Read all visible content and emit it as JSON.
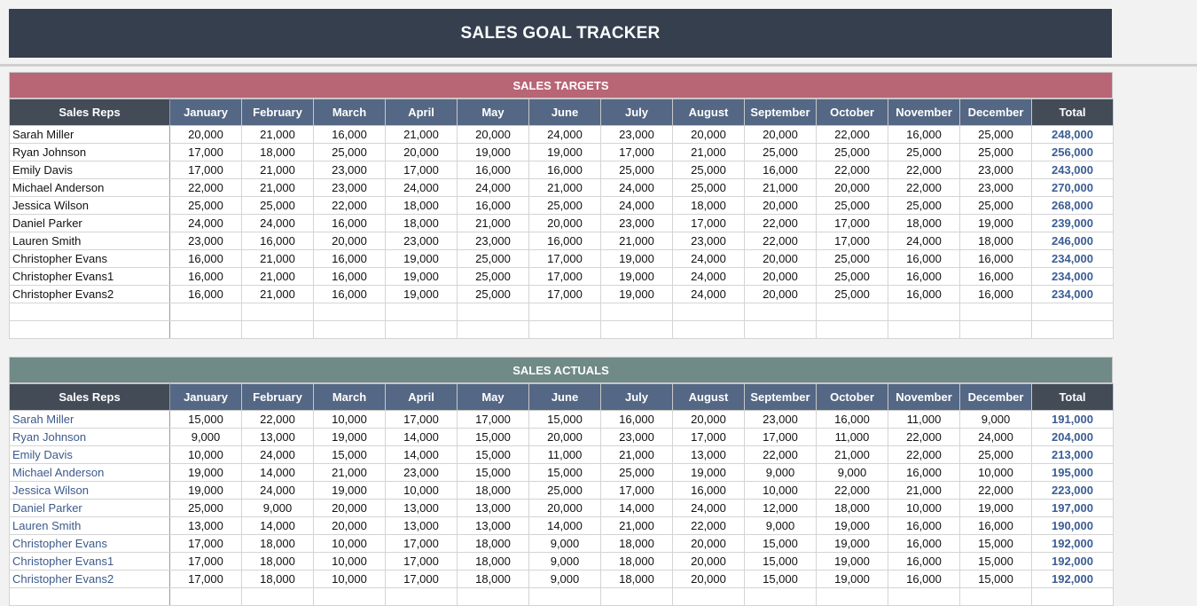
{
  "title": "SALES GOAL TRACKER",
  "columns": {
    "rep_header": "Sales Reps",
    "months": [
      "January",
      "February",
      "March",
      "April",
      "May",
      "June",
      "July",
      "August",
      "September",
      "October",
      "November",
      "December"
    ],
    "total_header": "Total"
  },
  "targets": {
    "header": "SALES TARGETS",
    "rows": [
      {
        "name": "Sarah Miller",
        "values": [
          "20,000",
          "21,000",
          "16,000",
          "21,000",
          "20,000",
          "24,000",
          "23,000",
          "20,000",
          "20,000",
          "22,000",
          "16,000",
          "25,000"
        ],
        "total": "248,000"
      },
      {
        "name": "Ryan Johnson",
        "values": [
          "17,000",
          "18,000",
          "25,000",
          "20,000",
          "19,000",
          "19,000",
          "17,000",
          "21,000",
          "25,000",
          "25,000",
          "25,000",
          "25,000"
        ],
        "total": "256,000"
      },
      {
        "name": "Emily Davis",
        "values": [
          "17,000",
          "21,000",
          "23,000",
          "17,000",
          "16,000",
          "16,000",
          "25,000",
          "25,000",
          "16,000",
          "22,000",
          "22,000",
          "23,000"
        ],
        "total": "243,000"
      },
      {
        "name": "Michael Anderson",
        "values": [
          "22,000",
          "21,000",
          "23,000",
          "24,000",
          "24,000",
          "21,000",
          "24,000",
          "25,000",
          "21,000",
          "20,000",
          "22,000",
          "23,000"
        ],
        "total": "270,000"
      },
      {
        "name": "Jessica Wilson",
        "values": [
          "25,000",
          "25,000",
          "22,000",
          "18,000",
          "16,000",
          "25,000",
          "24,000",
          "18,000",
          "20,000",
          "25,000",
          "25,000",
          "25,000"
        ],
        "total": "268,000"
      },
      {
        "name": "Daniel Parker",
        "values": [
          "24,000",
          "24,000",
          "16,000",
          "18,000",
          "21,000",
          "20,000",
          "23,000",
          "17,000",
          "22,000",
          "17,000",
          "18,000",
          "19,000"
        ],
        "total": "239,000"
      },
      {
        "name": "Lauren Smith",
        "values": [
          "23,000",
          "16,000",
          "20,000",
          "23,000",
          "23,000",
          "16,000",
          "21,000",
          "23,000",
          "22,000",
          "17,000",
          "24,000",
          "18,000"
        ],
        "total": "246,000"
      },
      {
        "name": "Christopher Evans",
        "values": [
          "16,000",
          "21,000",
          "16,000",
          "19,000",
          "25,000",
          "17,000",
          "19,000",
          "24,000",
          "20,000",
          "25,000",
          "16,000",
          "16,000"
        ],
        "total": "234,000"
      },
      {
        "name": "Christopher Evans1",
        "values": [
          "16,000",
          "21,000",
          "16,000",
          "19,000",
          "25,000",
          "17,000",
          "19,000",
          "24,000",
          "20,000",
          "25,000",
          "16,000",
          "16,000"
        ],
        "total": "234,000"
      },
      {
        "name": "Christopher Evans2",
        "values": [
          "16,000",
          "21,000",
          "16,000",
          "19,000",
          "25,000",
          "17,000",
          "19,000",
          "24,000",
          "20,000",
          "25,000",
          "16,000",
          "16,000"
        ],
        "total": "234,000"
      }
    ],
    "empty_rows": 2
  },
  "actuals": {
    "header": "SALES ACTUALS",
    "rows": [
      {
        "name": "Sarah Miller",
        "values": [
          "15,000",
          "22,000",
          "10,000",
          "17,000",
          "17,000",
          "15,000",
          "16,000",
          "20,000",
          "23,000",
          "16,000",
          "11,000",
          "9,000"
        ],
        "total": "191,000"
      },
      {
        "name": "Ryan Johnson",
        "values": [
          "9,000",
          "13,000",
          "19,000",
          "14,000",
          "15,000",
          "20,000",
          "23,000",
          "17,000",
          "17,000",
          "11,000",
          "22,000",
          "24,000"
        ],
        "total": "204,000"
      },
      {
        "name": "Emily Davis",
        "values": [
          "10,000",
          "24,000",
          "15,000",
          "14,000",
          "15,000",
          "11,000",
          "21,000",
          "13,000",
          "22,000",
          "21,000",
          "22,000",
          "25,000"
        ],
        "total": "213,000"
      },
      {
        "name": "Michael Anderson",
        "values": [
          "19,000",
          "14,000",
          "21,000",
          "23,000",
          "15,000",
          "15,000",
          "25,000",
          "19,000",
          "9,000",
          "9,000",
          "16,000",
          "10,000"
        ],
        "total": "195,000"
      },
      {
        "name": "Jessica Wilson",
        "values": [
          "19,000",
          "24,000",
          "19,000",
          "10,000",
          "18,000",
          "25,000",
          "17,000",
          "16,000",
          "10,000",
          "22,000",
          "21,000",
          "22,000"
        ],
        "total": "223,000"
      },
      {
        "name": "Daniel Parker",
        "values": [
          "25,000",
          "9,000",
          "20,000",
          "13,000",
          "13,000",
          "20,000",
          "14,000",
          "24,000",
          "12,000",
          "18,000",
          "10,000",
          "19,000"
        ],
        "total": "197,000"
      },
      {
        "name": "Lauren Smith",
        "values": [
          "13,000",
          "14,000",
          "20,000",
          "13,000",
          "13,000",
          "14,000",
          "21,000",
          "22,000",
          "9,000",
          "19,000",
          "16,000",
          "16,000"
        ],
        "total": "190,000"
      },
      {
        "name": "Christopher Evans",
        "values": [
          "17,000",
          "18,000",
          "10,000",
          "17,000",
          "18,000",
          "9,000",
          "18,000",
          "20,000",
          "15,000",
          "19,000",
          "16,000",
          "15,000"
        ],
        "total": "192,000"
      },
      {
        "name": "Christopher Evans1",
        "values": [
          "17,000",
          "18,000",
          "10,000",
          "17,000",
          "18,000",
          "9,000",
          "18,000",
          "20,000",
          "15,000",
          "19,000",
          "16,000",
          "15,000"
        ],
        "total": "192,000"
      },
      {
        "name": "Christopher Evans2",
        "values": [
          "17,000",
          "18,000",
          "10,000",
          "17,000",
          "18,000",
          "9,000",
          "18,000",
          "20,000",
          "15,000",
          "19,000",
          "16,000",
          "15,000"
        ],
        "total": "192,000"
      }
    ],
    "empty_rows": 1
  }
}
